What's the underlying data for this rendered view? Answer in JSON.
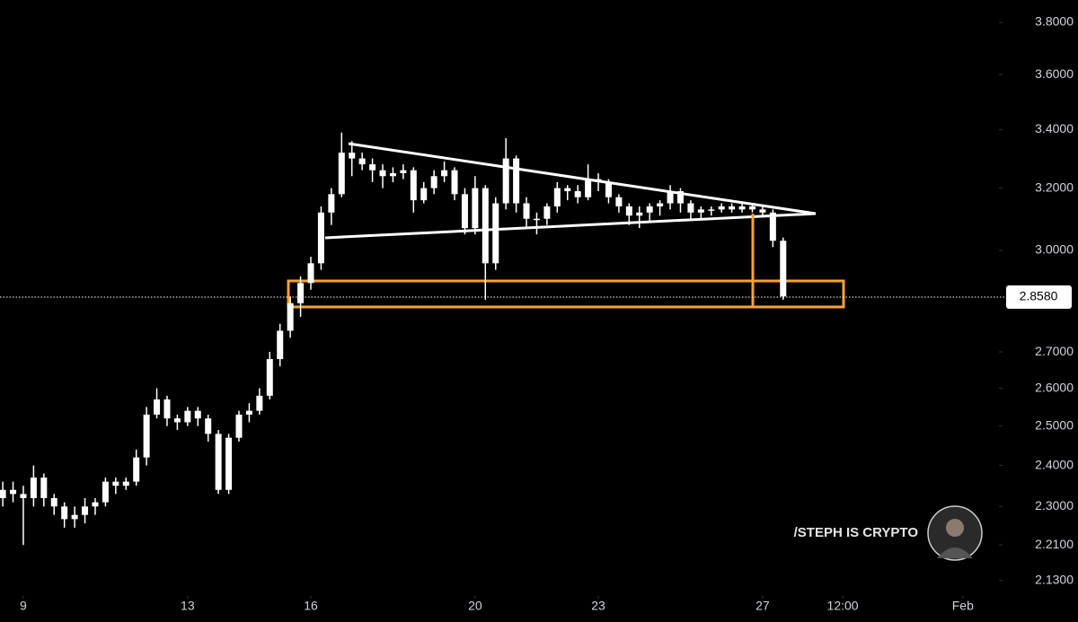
{
  "chart_data": {
    "type": "candlestick",
    "color": "#ffffff",
    "log_scale": true,
    "open": [
      2.32,
      2.34,
      2.33,
      2.32,
      2.37,
      2.32,
      2.3,
      2.27,
      2.28,
      2.3,
      2.31,
      2.36,
      2.35,
      2.36,
      2.42,
      2.53,
      2.57,
      2.52,
      2.51,
      2.54,
      2.52,
      2.48,
      2.34,
      2.47,
      2.53,
      2.54,
      2.58,
      2.68,
      2.76,
      2.84,
      2.9,
      2.96,
      3.12,
      3.18,
      3.32,
      3.3,
      3.28,
      3.26,
      3.24,
      3.25,
      3.26,
      3.16,
      3.2,
      3.24,
      3.26,
      3.18,
      3.07,
      3.2,
      2.96,
      3.15,
      3.3,
      3.15,
      3.1,
      3.1,
      3.14,
      3.2,
      3.19,
      3.17,
      3.23,
      3.22,
      3.17,
      3.14,
      3.11,
      3.12,
      3.14,
      3.15,
      3.19,
      3.15,
      3.12,
      3.13,
      3.13,
      3.14,
      3.13,
      3.14,
      3.13,
      3.12,
      3.03
    ],
    "high": [
      2.36,
      2.36,
      2.35,
      2.4,
      2.38,
      2.33,
      2.31,
      2.3,
      2.32,
      2.32,
      2.37,
      2.37,
      2.37,
      2.44,
      2.55,
      2.6,
      2.58,
      2.53,
      2.55,
      2.55,
      2.53,
      2.49,
      2.48,
      2.54,
      2.56,
      2.6,
      2.7,
      2.78,
      2.86,
      2.92,
      2.98,
      3.14,
      3.2,
      3.39,
      3.36,
      3.32,
      3.3,
      3.28,
      3.27,
      3.28,
      3.27,
      3.22,
      3.26,
      3.29,
      3.27,
      3.2,
      3.24,
      3.21,
      3.17,
      3.37,
      3.31,
      3.17,
      3.12,
      3.15,
      3.22,
      3.21,
      3.21,
      3.28,
      3.25,
      3.23,
      3.18,
      3.15,
      3.14,
      3.15,
      3.16,
      3.21,
      3.2,
      3.16,
      3.14,
      3.14,
      3.15,
      3.15,
      3.15,
      3.15,
      3.14,
      3.13,
      3.04
    ],
    "low": [
      2.3,
      2.31,
      2.21,
      2.3,
      2.3,
      2.28,
      2.25,
      2.25,
      2.26,
      2.28,
      2.3,
      2.33,
      2.34,
      2.35,
      2.4,
      2.52,
      2.5,
      2.49,
      2.5,
      2.5,
      2.46,
      2.33,
      2.33,
      2.46,
      2.51,
      2.53,
      2.57,
      2.66,
      2.74,
      2.8,
      2.88,
      2.94,
      3.08,
      3.17,
      3.24,
      3.26,
      3.22,
      3.2,
      3.22,
      3.23,
      3.12,
      3.15,
      3.18,
      3.22,
      3.16,
      3.05,
      3.05,
      2.85,
      2.94,
      3.13,
      3.12,
      3.07,
      3.05,
      3.08,
      3.12,
      3.16,
      3.15,
      3.16,
      3.19,
      3.15,
      3.12,
      3.08,
      3.07,
      3.09,
      3.11,
      3.13,
      3.12,
      3.1,
      3.1,
      3.11,
      3.12,
      3.12,
      3.12,
      3.12,
      3.11,
      3.01,
      2.85
    ],
    "close": [
      2.34,
      2.33,
      2.32,
      2.37,
      2.32,
      2.3,
      2.27,
      2.28,
      2.3,
      2.31,
      2.36,
      2.35,
      2.36,
      2.42,
      2.53,
      2.57,
      2.52,
      2.51,
      2.54,
      2.52,
      2.48,
      2.34,
      2.47,
      2.53,
      2.54,
      2.58,
      2.68,
      2.76,
      2.84,
      2.9,
      2.96,
      3.12,
      3.18,
      3.32,
      3.3,
      3.28,
      3.26,
      3.24,
      3.25,
      3.26,
      3.16,
      3.2,
      3.24,
      3.26,
      3.18,
      3.07,
      3.2,
      2.96,
      3.15,
      3.3,
      3.15,
      3.1,
      3.1,
      3.14,
      3.2,
      3.19,
      3.17,
      3.23,
      3.22,
      3.17,
      3.14,
      3.11,
      3.12,
      3.14,
      3.15,
      3.19,
      3.15,
      3.12,
      3.13,
      3.13,
      3.14,
      3.13,
      3.14,
      3.13,
      3.12,
      3.03,
      2.86
    ],
    "ylim": [
      2.1,
      3.85
    ],
    "yticks": [
      {
        "value": 3.8,
        "label": "3.8000"
      },
      {
        "value": 3.6,
        "label": "3.6000"
      },
      {
        "value": 3.4,
        "label": "3.4000"
      },
      {
        "value": 3.2,
        "label": "3.2000"
      },
      {
        "value": 3.0,
        "label": "3.0000"
      },
      {
        "value": 2.7,
        "label": "2.7000"
      },
      {
        "value": 2.6,
        "label": "2.6000"
      },
      {
        "value": 2.5,
        "label": "2.5000"
      },
      {
        "value": 2.4,
        "label": "2.4000"
      },
      {
        "value": 2.3,
        "label": "2.3000"
      },
      {
        "value": 2.21,
        "label": "2.2100"
      },
      {
        "value": 2.13,
        "label": "2.1300"
      }
    ],
    "xticks": [
      {
        "value": 2,
        "label": "9"
      },
      {
        "value": 18,
        "label": "13"
      },
      {
        "value": 30,
        "label": "16"
      },
      {
        "value": 46,
        "label": "20"
      },
      {
        "value": 58,
        "label": "23"
      },
      {
        "value": 74,
        "label": "27"
      },
      {
        "value": 81.8,
        "label": "12:00"
      },
      {
        "value": 93.5,
        "label": "Feb"
      }
    ],
    "last_price": {
      "value": 2.858,
      "label": "2.8580"
    },
    "watermark": "/STEPH IS CRYPTO"
  }
}
